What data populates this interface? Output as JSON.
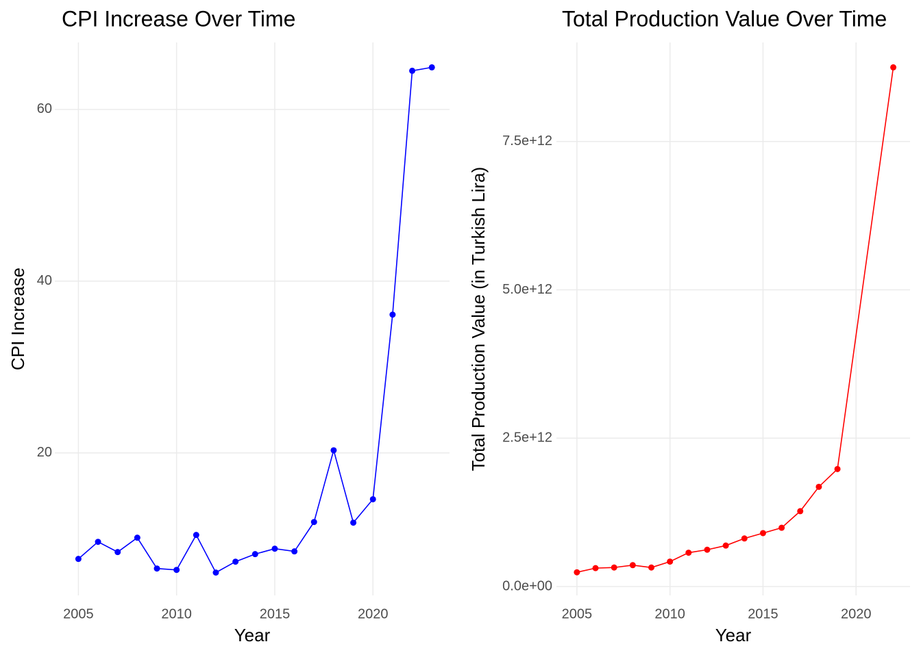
{
  "chart_data": [
    {
      "type": "line",
      "title": "CPI Increase Over Time",
      "x_label": "Year",
      "y_label": "CPI Increase",
      "x": [
        2005,
        2006,
        2007,
        2008,
        2009,
        2010,
        2011,
        2012,
        2013,
        2014,
        2015,
        2016,
        2017,
        2018,
        2019,
        2020,
        2021,
        2022,
        2023
      ],
      "series": [
        {
          "name": "CPI Increase",
          "color": "#0000ff",
          "values": [
            7.65,
            9.64,
            8.45,
            10.12,
            6.53,
            6.37,
            10.44,
            6.06,
            7.33,
            8.21,
            8.84,
            8.53,
            11.95,
            20.3,
            11.87,
            14.6,
            36.1,
            64.5,
            64.9
          ]
        }
      ],
      "xlim": [
        2003.8,
        2023.9
      ],
      "xticks": [
        2005,
        2010,
        2015,
        2020
      ],
      "ylim": [
        3.4,
        67.8
      ],
      "yticks": [
        20,
        40,
        60
      ],
      "grid": true
    },
    {
      "type": "line",
      "title": "Total Production Value Over Time",
      "x_label": "Year",
      "y_label": "Total Production Value (in Turkish Lira)",
      "x": [
        2005,
        2006,
        2007,
        2008,
        2009,
        2010,
        2011,
        2012,
        2013,
        2014,
        2015,
        2016,
        2017,
        2018,
        2019,
        2022
      ],
      "series": [
        {
          "name": "Total Production Value",
          "color": "#ff0000",
          "values": [
            240000000000,
            310000000000,
            320000000000,
            360000000000,
            320000000000,
            420000000000,
            570000000000,
            620000000000,
            690000000000,
            810000000000,
            900000000000,
            990000000000,
            1270000000000,
            1680000000000,
            1980000000000,
            8750000000000
          ]
        }
      ],
      "xlim": [
        2003.9,
        2022.9
      ],
      "xticks": [
        2005,
        2010,
        2015,
        2020
      ],
      "ylim": [
        -150000000000,
        9170000000000
      ],
      "yticks": [
        {
          "value": 0,
          "label": "0.0e+00"
        },
        {
          "value": 2500000000000,
          "label": "2.5e+12"
        },
        {
          "value": 5000000000000,
          "label": "5.0e+12"
        },
        {
          "value": 7500000000000,
          "label": "7.5e+12"
        }
      ],
      "grid": true
    }
  ]
}
